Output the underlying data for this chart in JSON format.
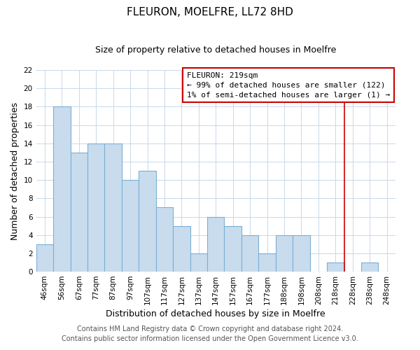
{
  "title": "FLEURON, MOELFRE, LL72 8HD",
  "subtitle": "Size of property relative to detached houses in Moelfre",
  "xlabel": "Distribution of detached houses by size in Moelfre",
  "ylabel": "Number of detached properties",
  "bar_labels": [
    "46sqm",
    "56sqm",
    "67sqm",
    "77sqm",
    "87sqm",
    "97sqm",
    "107sqm",
    "117sqm",
    "127sqm",
    "137sqm",
    "147sqm",
    "157sqm",
    "167sqm",
    "177sqm",
    "188sqm",
    "198sqm",
    "208sqm",
    "218sqm",
    "228sqm",
    "238sqm",
    "248sqm"
  ],
  "bar_values": [
    3,
    18,
    13,
    14,
    14,
    10,
    11,
    7,
    5,
    2,
    6,
    5,
    4,
    2,
    4,
    4,
    0,
    1,
    0,
    1,
    0
  ],
  "bar_color": "#c8dcee",
  "bar_edge_color": "#7bafd4",
  "grid_color": "#c8d8e8",
  "vline_color": "#cc0000",
  "annotation_text_line1": "FLEURON: 219sqm",
  "annotation_text_line2": "← 99% of detached houses are smaller (122)",
  "annotation_text_line3": "1% of semi-detached houses are larger (1) →",
  "ylim": [
    0,
    22
  ],
  "yticks": [
    0,
    2,
    4,
    6,
    8,
    10,
    12,
    14,
    16,
    18,
    20,
    22
  ],
  "footer1": "Contains HM Land Registry data © Crown copyright and database right 2024.",
  "footer2": "Contains public sector information licensed under the Open Government Licence v3.0.",
  "title_fontsize": 11,
  "subtitle_fontsize": 9,
  "axis_label_fontsize": 9,
  "tick_fontsize": 7.5,
  "annotation_fontsize": 8,
  "footer_fontsize": 7
}
